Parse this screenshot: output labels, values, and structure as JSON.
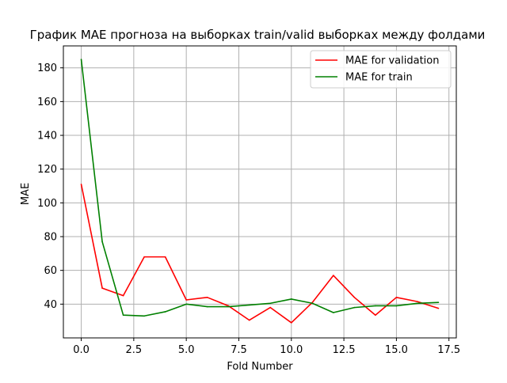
{
  "chart_data": {
    "type": "line",
    "title": "График MAE прогноза на выборках train/valid выборках между фолдами",
    "xlabel": "Fold Number",
    "ylabel": "MAE",
    "xlim": [
      -0.85,
      17.85
    ],
    "ylim": [
      20,
      193
    ],
    "xticks": [
      0.0,
      2.5,
      5.0,
      7.5,
      10.0,
      12.5,
      15.0,
      17.5
    ],
    "xtick_labels": [
      "0.0",
      "2.5",
      "5.0",
      "7.5",
      "10.0",
      "12.5",
      "15.0",
      "17.5"
    ],
    "yticks": [
      40,
      60,
      80,
      100,
      120,
      140,
      160,
      180
    ],
    "ytick_labels": [
      "40",
      "60",
      "80",
      "100",
      "120",
      "140",
      "160",
      "180"
    ],
    "grid": true,
    "legend_position": "top-right",
    "x": [
      0,
      1,
      2,
      3,
      4,
      5,
      6,
      7,
      8,
      9,
      10,
      11,
      12,
      13,
      14,
      15,
      16,
      17
    ],
    "series": [
      {
        "name": "MAE for validation",
        "color": "#ff0000",
        "values": [
          111,
          49.5,
          45,
          68,
          68,
          42.5,
          44,
          39,
          30.5,
          38,
          29,
          41,
          57,
          44,
          33.5,
          44,
          41.5,
          37.5
        ]
      },
      {
        "name": "MAE for train",
        "color": "#008000",
        "values": [
          185,
          77,
          33.5,
          33,
          35.5,
          40,
          38.5,
          38.5,
          39.5,
          40.5,
          43,
          40.5,
          35,
          38,
          39,
          39,
          40.5,
          41
        ]
      }
    ]
  }
}
